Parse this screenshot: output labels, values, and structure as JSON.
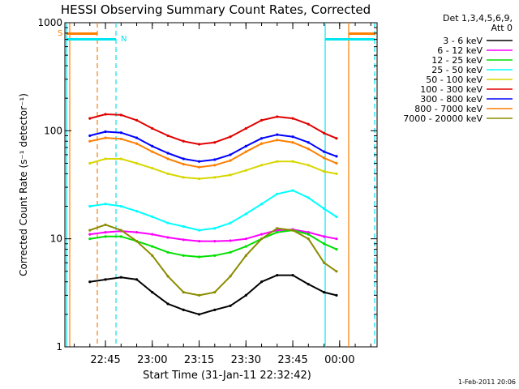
{
  "chart_data": {
    "type": "line",
    "title": "HESSI Observing Summary Count Rates, Corrected",
    "xlabel": "Start Time (31-Jan-11 22:32:42)",
    "ylabel": "Corrected Count Rate (s⁻¹ detector⁻¹)",
    "yscale": "log",
    "ylim": [
      1,
      1000
    ],
    "ytick_values": [
      1,
      10,
      100,
      1000
    ],
    "ytick_labels": [
      "1",
      "10",
      "100",
      "1000"
    ],
    "xlim": [
      "22:32",
      "00:12"
    ],
    "xtick_values": [
      "22:45",
      "23:00",
      "23:15",
      "23:30",
      "23:45",
      "00:00"
    ],
    "xtick_labels": [
      "22:45",
      "23:00",
      "23:15",
      "23:30",
      "23:45",
      "00:00"
    ],
    "legend_header": [
      "Det 1,3,4,5,6,9,",
      "Att 0"
    ],
    "legend_position": "right",
    "footer": "1-Feb-2011 20:06",
    "flags": [
      {
        "label": "S",
        "color": "#ff7f00"
      },
      {
        "label": "N",
        "color": "#00e5ee"
      }
    ],
    "x": [
      "22:40",
      "22:45",
      "22:50",
      "22:55",
      "23:00",
      "23:05",
      "23:10",
      "23:15",
      "23:20",
      "23:25",
      "23:30",
      "23:35",
      "23:40",
      "23:45",
      "23:50",
      "23:55",
      "23:59"
    ],
    "series": [
      {
        "name": "3 - 6 keV",
        "color": "#000000",
        "values": [
          4,
          4.2,
          4.4,
          4.2,
          3.2,
          2.5,
          2.2,
          2.0,
          2.2,
          2.4,
          3.0,
          4.0,
          4.6,
          4.6,
          3.8,
          3.2,
          3.0
        ]
      },
      {
        "name": "6 - 12 keV",
        "color": "#ff00ff",
        "values": [
          11,
          11.5,
          11.8,
          11.5,
          11,
          10.3,
          9.8,
          9.5,
          9.5,
          9.6,
          10,
          11,
          12,
          12.2,
          11.5,
          10.5,
          10
        ]
      },
      {
        "name": "12 - 25 keV",
        "color": "#00e000",
        "values": [
          10,
          10.5,
          10.5,
          9.5,
          8.5,
          7.5,
          7,
          6.8,
          7,
          7.5,
          8.5,
          10,
          11.5,
          12,
          11,
          9,
          8
        ]
      },
      {
        "name": "25 - 50 keV",
        "color": "#00ffff",
        "values": [
          20,
          21,
          20,
          18,
          16,
          14,
          13,
          12,
          12.5,
          14,
          17,
          21,
          26,
          28,
          24,
          19,
          16
        ]
      },
      {
        "name": "50 - 100 keV",
        "color": "#d7d700",
        "values": [
          50,
          55,
          55,
          50,
          45,
          40,
          37,
          36,
          37,
          39,
          43,
          48,
          52,
          52,
          48,
          42,
          40
        ]
      },
      {
        "name": "100 - 300 keV",
        "color": "#e00000",
        "values": [
          130,
          142,
          140,
          125,
          105,
          90,
          80,
          75,
          78,
          88,
          105,
          125,
          135,
          130,
          115,
          95,
          85
        ]
      },
      {
        "name": "300 - 800 keV",
        "color": "#0000ff",
        "values": [
          90,
          98,
          96,
          86,
          72,
          62,
          55,
          52,
          54,
          60,
          72,
          85,
          92,
          88,
          78,
          64,
          58
        ]
      },
      {
        "name": "800 - 7000 keV",
        "color": "#ff7f00",
        "values": [
          80,
          86,
          84,
          76,
          64,
          55,
          49,
          46,
          48,
          53,
          64,
          76,
          82,
          78,
          68,
          56,
          50
        ]
      },
      {
        "name": "7000 - 20000 keV",
        "color": "#8b8b00",
        "values": [
          12,
          13.5,
          12,
          9.5,
          7,
          4.5,
          3.2,
          3.0,
          3.2,
          4.5,
          7,
          10,
          12.5,
          12,
          10,
          6,
          5
        ]
      }
    ]
  }
}
